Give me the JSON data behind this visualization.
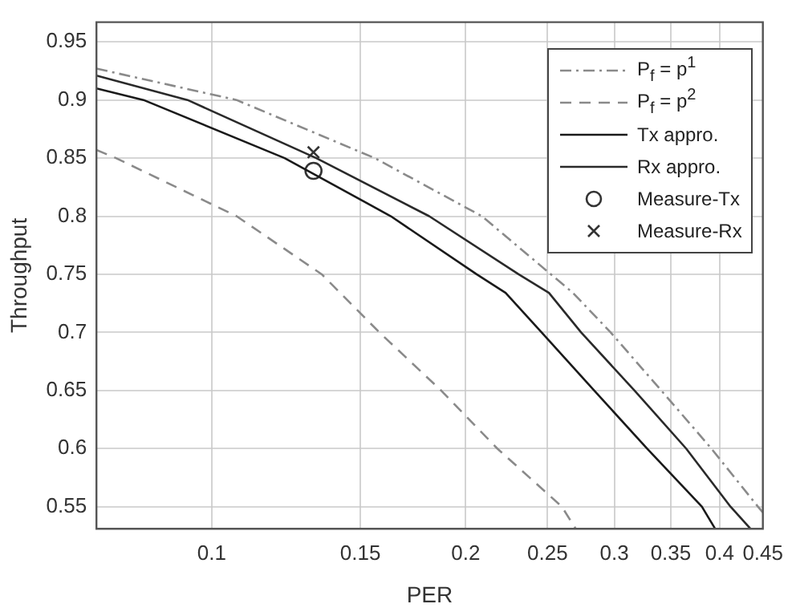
{
  "chart_data": {
    "type": "line",
    "xlabel": "PER",
    "ylabel": "Throughput",
    "log": "x",
    "xlim": [
      0.073,
      0.45
    ],
    "ylim": [
      0.531,
      0.967
    ],
    "xticks": [
      0.1,
      0.15,
      0.2,
      0.25,
      0.3,
      0.35,
      0.4,
      0.45
    ],
    "yticks": [
      0.55,
      0.6,
      0.65,
      0.7,
      0.75,
      0.8,
      0.85,
      0.9,
      0.95
    ],
    "grid": true,
    "legend": "top right",
    "marker": "none",
    "series": [
      {
        "name": "P$_{f}$ = p$^{1}$",
        "color": "#8a8a8a",
        "line_style": "dashdot",
        "x": [
          0.073,
          0.107,
          0.156,
          0.209,
          0.268,
          0.297,
          0.341,
          0.391,
          0.444,
          0.45
        ],
        "values": [
          0.927,
          0.9,
          0.85,
          0.8,
          0.734,
          0.7,
          0.65,
          0.6,
          0.55,
          0.545
        ]
      },
      {
        "name": "P$_{f}$ = p$^{2}$",
        "color": "#8a8a8a",
        "line_style": "dashed",
        "x": [
          0.073,
          0.077,
          0.107,
          0.135,
          0.158,
          0.187,
          0.218,
          0.26,
          0.27
        ],
        "values": [
          0.857,
          0.85,
          0.8,
          0.75,
          0.7,
          0.65,
          0.6,
          0.55,
          0.531
        ]
      },
      {
        "name": "Tx appro.",
        "color": "#1a1a1a",
        "line_style": "solid",
        "x": [
          0.073,
          0.083,
          0.122,
          0.163,
          0.206,
          0.223,
          0.246,
          0.284,
          0.328,
          0.381,
          0.395
        ],
        "values": [
          0.91,
          0.9,
          0.85,
          0.8,
          0.75,
          0.734,
          0.7,
          0.65,
          0.6,
          0.55,
          0.531
        ]
      },
      {
        "name": "Rx appro.",
        "color": "#2a2a2a",
        "line_style": "solid",
        "x": [
          0.073,
          0.0936,
          0.133,
          0.181,
          0.231,
          0.251,
          0.274,
          0.317,
          0.365,
          0.412,
          0.435
        ],
        "values": [
          0.921,
          0.9,
          0.85,
          0.8,
          0.75,
          0.734,
          0.7,
          0.65,
          0.6,
          0.55,
          0.531
        ]
      },
      {
        "name": "Measure-Tx",
        "type": "scatter",
        "color": "#333333",
        "marker": "circle",
        "x": [
          0.132
        ],
        "values": [
          0.839
        ]
      },
      {
        "name": "Measure-Rx",
        "type": "scatter",
        "color": "#333333",
        "marker": "cross",
        "x": [
          0.132
        ],
        "values": [
          0.855
        ]
      }
    ]
  }
}
